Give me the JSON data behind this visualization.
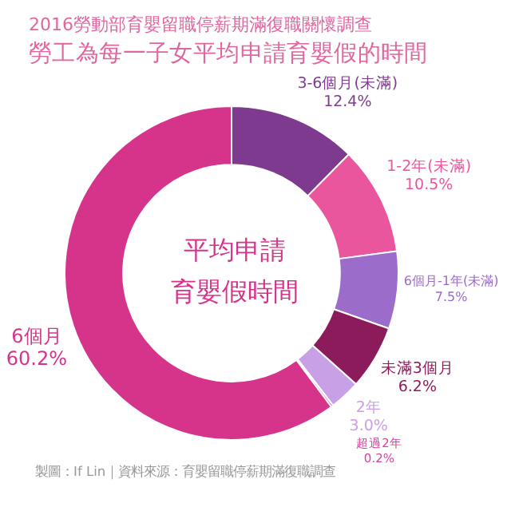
{
  "chart_data": {
    "type": "donut",
    "subtitle": "2016勞動部育嬰留職停薪期滿復職關懷調查",
    "title": "勞工為每一子女平均申請育嬰假的時間",
    "categories": [
      "3-6個月(未滿)",
      "1-2年(未滿)",
      "6個月-1年(未滿)",
      "未滿3個月",
      "2年",
      "超過2年",
      "6個月"
    ],
    "values": [
      12.4,
      10.5,
      7.5,
      6.2,
      3.0,
      0.2,
      60.2
    ],
    "value_labels": [
      "12.4%",
      "10.5%",
      "7.5%",
      "6.2%",
      "3.0%",
      "0.2%",
      "60.2%"
    ],
    "colors": [
      "#7d3a8e",
      "#e9569d",
      "#9b6cc9",
      "#8c1b5b",
      "#c8a0e6",
      "#d2449a",
      "#d6348b"
    ],
    "annotations": [
      "平均申請",
      "育嬰假時間",
      "製圖：If Lin｜資料來源：育嬰留職停薪期滿復職調查"
    ],
    "legend": false
  }
}
